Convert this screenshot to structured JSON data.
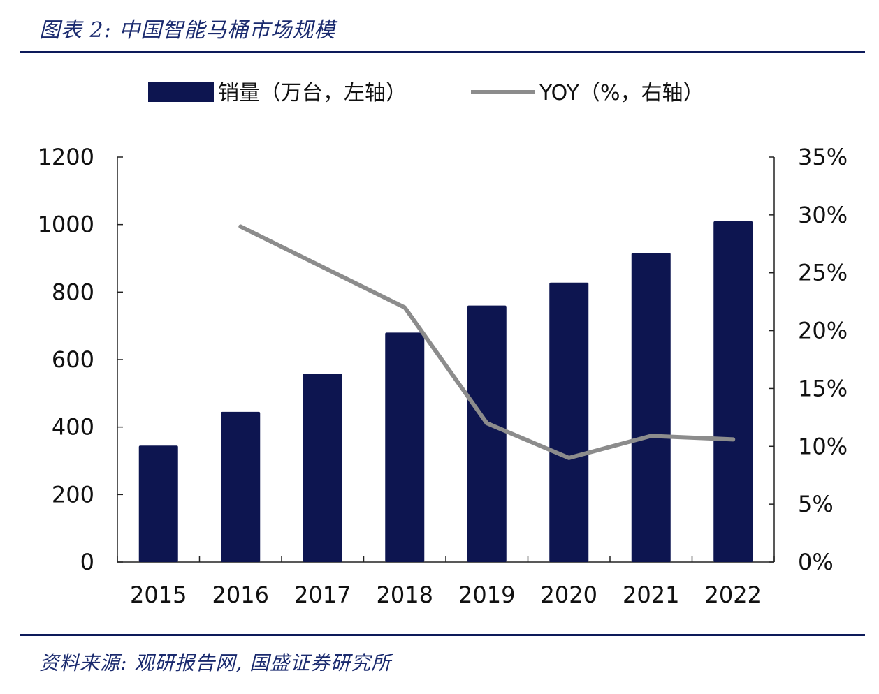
{
  "figure": {
    "title": "图表 2:  中国智能马桶市场规模",
    "source": "资料来源:  观研报告网,  国盛证券研究所"
  },
  "chart_data": {
    "type": "bar",
    "categories": [
      "2015",
      "2016",
      "2017",
      "2018",
      "2019",
      "2020",
      "2021",
      "2022"
    ],
    "series": [
      {
        "name": "销量（万台，左轴）",
        "type": "bar",
        "axis": "left",
        "color": "#0d1550",
        "values": [
          345,
          445,
          558,
          680,
          760,
          828,
          916,
          1010
        ]
      },
      {
        "name": "YOY（%，右轴）",
        "type": "line",
        "axis": "right",
        "color": "#8c8c8c",
        "values": [
          null,
          29.0,
          25.5,
          22.0,
          12.0,
          9.0,
          10.9,
          10.6
        ]
      }
    ],
    "y_left": {
      "min": 0,
      "max": 1200,
      "ticks": [
        0,
        200,
        400,
        600,
        800,
        1000,
        1200
      ]
    },
    "y_right": {
      "min": 0,
      "max": 35,
      "ticks": [
        "0%",
        "5%",
        "10%",
        "15%",
        "20%",
        "25%",
        "30%",
        "35%"
      ]
    },
    "legend_position": "top",
    "grid": false
  }
}
